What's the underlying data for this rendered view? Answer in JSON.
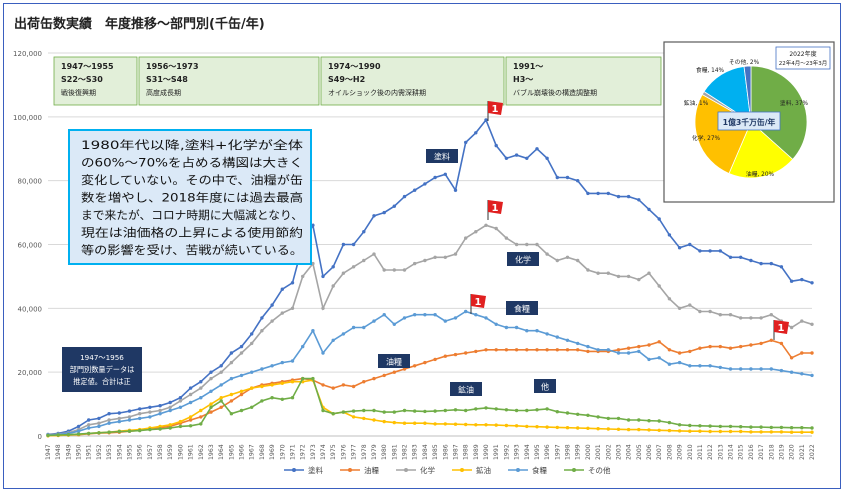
{
  "title": "出荷缶数実績　年度推移〜部門別(千缶/年)",
  "colors": {
    "toryo": "#4472c4",
    "yuryo": "#ed7d31",
    "kagaku": "#a5a5a5",
    "kozan": "#ffc000",
    "shokuryo": "#5b9bd5",
    "sonota": "#70ad47",
    "era_box": "#e2efd9",
    "era_border": "#70ad47",
    "note_bg": "#dbe9f7",
    "note_border": "#00b0f0",
    "caption_bg": "#1f3864",
    "flag": "#e02020"
  },
  "eras": [
    {
      "line1": "1947〜1955",
      "line2": "S22〜S30",
      "line3": "戦後復興期"
    },
    {
      "line1": "1956〜1973",
      "line2": "S31〜S48",
      "line3": "高度成長期"
    },
    {
      "line1": "1974〜1990",
      "line2": "S49〜H2",
      "line3": "オイルショック後の内需深耕期"
    },
    {
      "line1": "1991〜",
      "line2": "H3〜",
      "line3": "バブル崩壊後の構造調整期"
    }
  ],
  "note": {
    "lines": [
      "1980年代以降,塗料+化学が全体",
      "の60%〜70%を占める構図は大きく",
      "変化していない。その中で、油糧が缶",
      "数を増やし、2018年度には過去最高",
      "まで来たが、コロナ時期に大幅減となり、",
      "現在は油価格の上昇による使用節約",
      "等の影響を受け、苦戦が続いている。"
    ]
  },
  "caption": {
    "lines": [
      "1947〜1956",
      "部門別数量データは",
      "推定値。合計は正"
    ]
  },
  "flag_label": "1",
  "series_labels": {
    "toryo": "塗料",
    "kagaku": "化学",
    "shokuryo": "食糧",
    "yuryo": "油糧",
    "kozan": "鉱油",
    "sonota": "他"
  },
  "pie": {
    "title_line1": "2022年度",
    "title_line2": "22年4月〜23年3月",
    "center_label": "1億3千万缶/年",
    "slices": [
      {
        "label": "塗料, 37%",
        "value": 37,
        "color": "#70ad47"
      },
      {
        "label": "油糧, 20%",
        "value": 20,
        "color": "#ffff00"
      },
      {
        "label": "化学, 27%",
        "value": 27,
        "color": "#ffc000"
      },
      {
        "label": "鉱油, 1%",
        "value": 1,
        "color": "#a5a5a5"
      },
      {
        "label": "食糧, 14%",
        "value": 14,
        "color": "#00b0f0"
      },
      {
        "label": "その他, 2%",
        "value": 2,
        "color": "#4472c4"
      }
    ]
  },
  "chart_data": {
    "type": "line",
    "ylim": [
      0,
      120000
    ],
    "yticks": [
      "0",
      "20,000",
      "40,000",
      "60,000",
      "80,000",
      "100,000",
      "120,000"
    ],
    "x": [
      1947,
      1948,
      1949,
      1950,
      1951,
      1952,
      1953,
      1954,
      1955,
      1956,
      1957,
      1958,
      1959,
      1960,
      1961,
      1962,
      1963,
      1964,
      1965,
      1966,
      1967,
      1968,
      1969,
      1970,
      1971,
      1972,
      1973,
      1974,
      1975,
      1976,
      1977,
      1978,
      1979,
      1980,
      1981,
      1982,
      1983,
      1984,
      1985,
      1986,
      1987,
      1988,
      1989,
      1990,
      1991,
      1992,
      1993,
      1994,
      1995,
      1996,
      1997,
      1998,
      1999,
      2000,
      2001,
      2002,
      2003,
      2004,
      2005,
      2006,
      2007,
      2008,
      2009,
      2010,
      2011,
      2012,
      2013,
      2014,
      2015,
      2016,
      2017,
      2018,
      2019,
      2020,
      2021,
      2022
    ],
    "series": [
      {
        "name": "塗料",
        "key": "toryo",
        "values": [
          500,
          800,
          1500,
          3000,
          5000,
          5500,
          7000,
          7200,
          7800,
          8500,
          9000,
          9500,
          10500,
          12000,
          15000,
          17000,
          20000,
          22000,
          26000,
          28000,
          32000,
          37000,
          41000,
          46000,
          48000,
          60000,
          66000,
          50000,
          53000,
          60000,
          60000,
          64000,
          69000,
          70000,
          72000,
          75000,
          77000,
          79000,
          81000,
          82000,
          77000,
          92000,
          95000,
          99000,
          91000,
          87000,
          88000,
          87000,
          90000,
          87000,
          81000,
          81000,
          80000,
          76000,
          76000,
          76000,
          75000,
          75000,
          74000,
          71000,
          68000,
          63000,
          59000,
          60000,
          58000,
          58000,
          58000,
          56000,
          56000,
          55000,
          54000,
          54000,
          53000,
          48500,
          49000,
          48000
        ]
      },
      {
        "name": "油糧",
        "key": "yuryo",
        "values": [
          100,
          200,
          300,
          400,
          700,
          900,
          1000,
          1200,
          1500,
          1800,
          2200,
          2600,
          3000,
          4000,
          5000,
          6000,
          7500,
          9000,
          11000,
          13000,
          15000,
          16000,
          16500,
          17000,
          17500,
          18000,
          17500,
          16000,
          15000,
          16000,
          15500,
          17000,
          18000,
          19000,
          20000,
          21000,
          22000,
          23000,
          24000,
          25000,
          25500,
          26000,
          26500,
          27000,
          27000,
          27000,
          27000,
          27000,
          27000,
          27000,
          27000,
          27000,
          27000,
          26500,
          26500,
          26500,
          27000,
          27500,
          28000,
          28500,
          29500,
          27000,
          26000,
          26500,
          27500,
          28000,
          28000,
          27500,
          28000,
          28500,
          29000,
          30000,
          29000,
          24500,
          26000,
          26000
        ]
      },
      {
        "name": "化学",
        "key": "kagaku",
        "values": [
          400,
          600,
          1000,
          2000,
          3500,
          4000,
          5000,
          5500,
          6000,
          7000,
          7500,
          8000,
          9000,
          11000,
          13000,
          15000,
          18000,
          20000,
          23000,
          26000,
          29000,
          33000,
          36000,
          38500,
          40000,
          50000,
          54000,
          40000,
          47000,
          51000,
          53000,
          55000,
          57000,
          52000,
          52000,
          52000,
          54000,
          55000,
          56000,
          56000,
          57000,
          62000,
          64000,
          66000,
          65000,
          62000,
          60000,
          60000,
          60000,
          57000,
          55000,
          56000,
          55000,
          52000,
          51000,
          51000,
          50000,
          50000,
          49000,
          51000,
          47000,
          43000,
          40000,
          41000,
          39000,
          39000,
          38000,
          38000,
          37000,
          37000,
          37000,
          38000,
          36000,
          34000,
          36000,
          35000
        ]
      },
      {
        "name": "鉱油",
        "key": "kozan",
        "values": [
          100,
          200,
          300,
          500,
          800,
          1000,
          1200,
          1500,
          1800,
          2000,
          2500,
          3000,
          3500,
          4500,
          6000,
          8000,
          10000,
          12000,
          13000,
          14000,
          15000,
          15500,
          16000,
          16500,
          17000,
          17000,
          17500,
          9000,
          7000,
          7500,
          6000,
          5500,
          5000,
          4500,
          4200,
          4000,
          4000,
          4000,
          3800,
          3800,
          3700,
          3600,
          3500,
          3500,
          3400,
          3300,
          3200,
          3000,
          2900,
          2800,
          2700,
          2600,
          2500,
          2400,
          2300,
          2200,
          2100,
          2000,
          2000,
          1900,
          1800,
          1700,
          1600,
          1500,
          1500,
          1400,
          1400,
          1400,
          1400,
          1300,
          1300,
          1300,
          1300,
          1200,
          1200,
          1200
        ]
      },
      {
        "name": "食糧",
        "key": "shokuryo",
        "values": [
          300,
          500,
          800,
          1500,
          2500,
          3000,
          4000,
          4500,
          5000,
          5500,
          6000,
          7000,
          8000,
          9000,
          10500,
          12000,
          14000,
          16000,
          18000,
          19000,
          20000,
          21000,
          22000,
          23000,
          23500,
          28000,
          33000,
          26000,
          30000,
          32000,
          34000,
          34000,
          36000,
          38000,
          35000,
          37000,
          38000,
          38000,
          38000,
          36000,
          37000,
          39000,
          38000,
          37000,
          35000,
          34000,
          34000,
          33000,
          33000,
          32000,
          31000,
          30000,
          29000,
          28000,
          27000,
          27000,
          26000,
          26000,
          26500,
          24000,
          24500,
          22500,
          23000,
          22000,
          22000,
          22000,
          21500,
          21000,
          21000,
          21000,
          21000,
          21000,
          20500,
          20000,
          19500,
          19000
        ]
      },
      {
        "name": "その他",
        "key": "sonota",
        "values": [
          200,
          300,
          400,
          600,
          800,
          1000,
          1200,
          1400,
          1500,
          1700,
          2000,
          2200,
          2500,
          3000,
          3200,
          3800,
          9000,
          11000,
          7000,
          8000,
          9000,
          11000,
          12000,
          11500,
          12000,
          18000,
          18000,
          8000,
          7000,
          7500,
          7800,
          8000,
          8000,
          7500,
          7500,
          8000,
          7800,
          7700,
          7800,
          8000,
          8200,
          8000,
          8500,
          8800,
          8500,
          8200,
          8000,
          8000,
          8200,
          8500,
          7600,
          7200,
          6800,
          6500,
          6000,
          5500,
          5500,
          5000,
          5000,
          4800,
          4700,
          4200,
          3500,
          3300,
          3200,
          3100,
          3000,
          3000,
          2900,
          2800,
          2800,
          2700,
          2700,
          2600,
          2600,
          2500
        ]
      }
    ]
  }
}
